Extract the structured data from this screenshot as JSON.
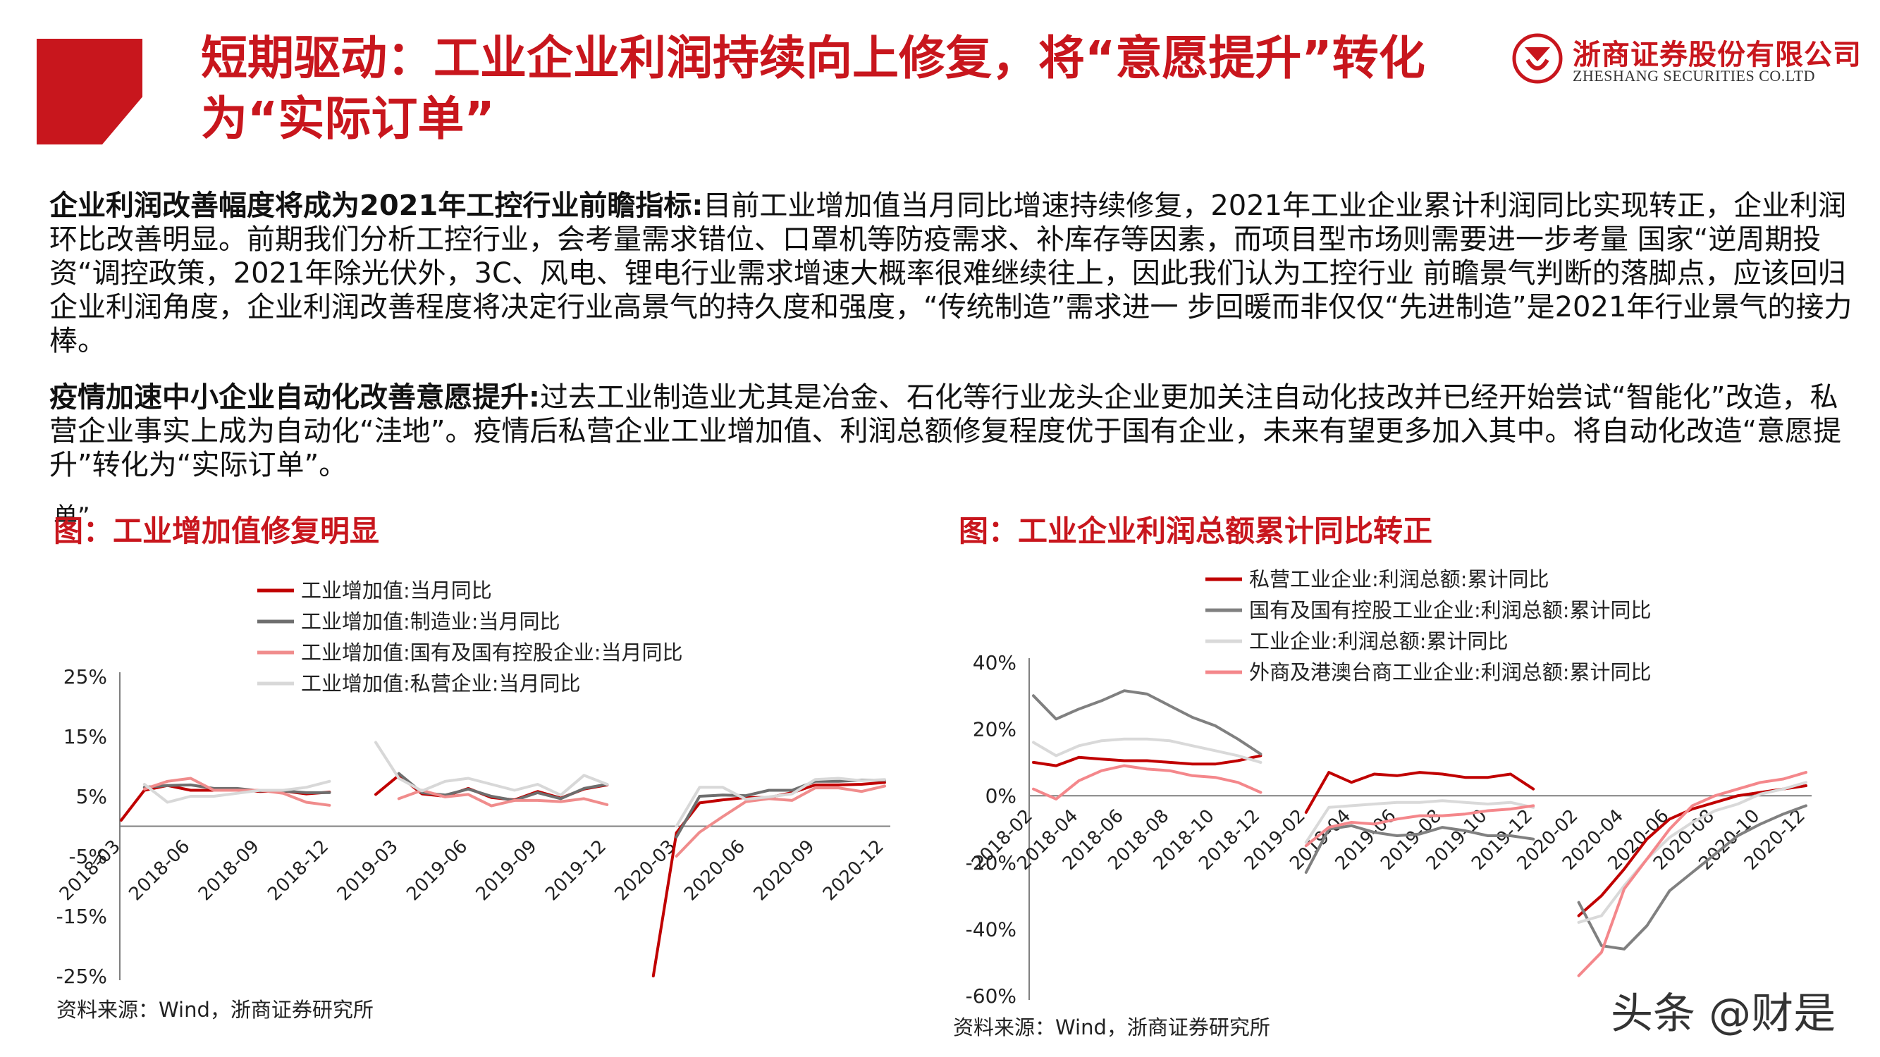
{
  "header": {
    "title": "短期驱动：工业企业利润持续向上修复，将“意愿提升”转化为“实际订单”",
    "logo_cn": "浙商证券股份有限公司",
    "logo_en": "ZHESHANG SECURITIES CO.LTD",
    "brand_color": "#c8161d"
  },
  "paragraphs": [
    {
      "lead": "企业利润改善幅度将成为2021年工控行业前瞻指标:",
      "body": "目前工业增加值当月同比增速持续修复，2021年工业企业累计利润同比实现转正，企业利润环比改善明显。前期我们分析工控行业，会考量需求错位、口罩机等防疫需求、补库存等因素，而项目型市场则需要进一步考量 国家“逆周期投资“调控政策，2021年除光伏外，3C、风电、锂电行业需求增速大概率很难继续往上，因此我们认为工控行业 前瞻景气判断的落脚点，应该回归企业利润角度，企业利润改善程度将决定行业高景气的持久度和强度，“传统制造”需求进一 步回暖而非仅仅“先进制造”是2021年行业景气的接力棒。"
    },
    {
      "lead": "疫情加速中小企业自动化改善意愿提升:",
      "body": "过去工业制造业尤其是冶金、石化等行业龙头企业更加关注自动化技改并已经开始尝试“智能化”改造，私营企业事实上成为自动化“洼地”。疫情后私营企业工业增加值、利润总额修复程度优于国有企业，未来有望更多加入其中。将自动化改造“意愿提升”转化为“实际订单”。"
    }
  ],
  "stray_text": "单”",
  "watermark": "头条 @财是",
  "chart_data": [
    {
      "type": "line",
      "title": "图：工业增加值修复明显",
      "source": "资料来源：Wind，浙商证券研究所",
      "ylim": [
        -25,
        25
      ],
      "y_ticks": [
        -25,
        -15,
        -5,
        5,
        15,
        25
      ],
      "y_tick_labels": [
        "-25%",
        "-15%",
        "-5%",
        "5%",
        "15%",
        "25%"
      ],
      "x": [
        "2018-03",
        "2018-04",
        "2018-05",
        "2018-06",
        "2018-07",
        "2018-08",
        "2018-09",
        "2018-10",
        "2018-11",
        "2018-12",
        "2019-01",
        "2019-02",
        "2019-03",
        "2019-04",
        "2019-05",
        "2019-06",
        "2019-07",
        "2019-08",
        "2019-09",
        "2019-10",
        "2019-11",
        "2019-12",
        "2020-01",
        "2020-02",
        "2020-03",
        "2020-04",
        "2020-05",
        "2020-06",
        "2020-07",
        "2020-08",
        "2020-09",
        "2020-10",
        "2020-11",
        "2020-12"
      ],
      "x_tick_labels": [
        "2018-03",
        "2018-06",
        "2018-09",
        "2018-12",
        "2019-03",
        "2019-06",
        "2019-09",
        "2019-12",
        "2020-03",
        "2020-06",
        "2020-09",
        "2020-12"
      ],
      "legend_position": "top-center",
      "grid": false,
      "series": [
        {
          "name": "工业增加值:当月同比",
          "color": "#c00000",
          "width": 4,
          "values": [
            1.0,
            6.0,
            6.8,
            6.0,
            6.0,
            6.1,
            5.8,
            5.9,
            5.4,
            5.7,
            null,
            5.3,
            8.5,
            5.4,
            5.0,
            6.3,
            4.8,
            4.4,
            5.8,
            4.7,
            6.2,
            6.9,
            null,
            -25.0,
            -1.1,
            3.9,
            4.4,
            4.8,
            4.8,
            5.6,
            6.9,
            6.9,
            7.0,
            7.3
          ]
        },
        {
          "name": "工业增加值:制造业:当月同比",
          "color": "#6e6e6e",
          "width": 4,
          "values": [
            null,
            6.5,
            6.8,
            6.9,
            6.3,
            6.3,
            5.9,
            5.9,
            5.6,
            5.6,
            null,
            null,
            8.8,
            5.6,
            5.2,
            6.2,
            5.0,
            4.3,
            5.6,
            4.6,
            6.3,
            7.0,
            null,
            null,
            -1.8,
            5.0,
            5.2,
            5.1,
            6.0,
            6.0,
            7.5,
            7.5,
            7.7,
            7.7
          ]
        },
        {
          "name": "工业增加值:国有及国有控股企业:当月同比",
          "color": "#f08c8c",
          "width": 4,
          "values": [
            null,
            6.2,
            7.5,
            8.0,
            6.0,
            6.0,
            6.0,
            5.5,
            4.0,
            3.5,
            null,
            null,
            4.6,
            6.0,
            4.9,
            5.3,
            3.4,
            4.3,
            4.3,
            4.1,
            4.6,
            3.6,
            null,
            null,
            -5.0,
            -1.0,
            1.6,
            4.1,
            4.6,
            4.3,
            6.4,
            6.4,
            5.8,
            6.7
          ]
        },
        {
          "name": "工业增加值:私营企业:当月同比",
          "color": "#d8d8d8",
          "width": 4,
          "values": [
            null,
            7.0,
            4.0,
            5.0,
            5.0,
            5.5,
            6.0,
            6.0,
            6.5,
            7.5,
            null,
            14.0,
            8.0,
            5.9,
            7.5,
            8.0,
            7.0,
            6.0,
            7.0,
            5.2,
            8.5,
            7.0,
            null,
            null,
            0.0,
            6.5,
            6.5,
            4.5,
            4.9,
            5.4,
            7.8,
            8.0,
            7.6,
            7.8
          ]
        }
      ]
    },
    {
      "type": "line",
      "title": "图：工业企业利润总额累计同比转正",
      "source": "资料来源：Wind，浙商证券研究所",
      "ylim": [
        -60,
        40
      ],
      "y_ticks": [
        -60,
        -40,
        -20,
        0,
        20,
        40
      ],
      "y_tick_labels": [
        "-60%",
        "-40%",
        "-20%",
        "0%",
        "20%",
        "40%"
      ],
      "x": [
        "2018-02",
        "2018-03",
        "2018-04",
        "2018-05",
        "2018-06",
        "2018-07",
        "2018-08",
        "2018-09",
        "2018-10",
        "2018-11",
        "2018-12",
        "2019-01",
        "2019-02",
        "2019-03",
        "2019-04",
        "2019-05",
        "2019-06",
        "2019-07",
        "2019-08",
        "2019-09",
        "2019-10",
        "2019-11",
        "2019-12",
        "2020-01",
        "2020-02",
        "2020-03",
        "2020-04",
        "2020-05",
        "2020-06",
        "2020-07",
        "2020-08",
        "2020-09",
        "2020-10",
        "2020-11",
        "2020-12"
      ],
      "x_tick_labels": [
        "2018-02",
        "2018-04",
        "2018-06",
        "2018-08",
        "2018-10",
        "2018-12",
        "2019-02",
        "2019-04",
        "2019-06",
        "2019-08",
        "2019-10",
        "2019-12",
        "2020-02",
        "2020-04",
        "2020-06",
        "2020-08",
        "2020-10",
        "2020-12"
      ],
      "legend_position": "top-center",
      "grid": false,
      "series": [
        {
          "name": "私营工业企业:利润总额:累计同比",
          "color": "#c00000",
          "width": 4,
          "values": [
            10.0,
            9.0,
            11.5,
            11.0,
            10.5,
            10.5,
            10.0,
            9.5,
            9.5,
            10.5,
            12.0,
            null,
            -5.0,
            7.0,
            4.0,
            6.5,
            6.0,
            7.0,
            6.5,
            5.5,
            5.5,
            6.5,
            2.0,
            null,
            -36.0,
            -30.0,
            -22.0,
            -13.0,
            -7.0,
            -4.0,
            -2.0,
            0.0,
            1.0,
            2.0,
            3.0
          ]
        },
        {
          "name": "国有及国有控股工业企业:利润总额:累计同比",
          "color": "#808080",
          "width": 4,
          "values": [
            30.0,
            23.0,
            26.0,
            28.5,
            31.5,
            30.5,
            27.0,
            23.5,
            21.0,
            17.0,
            12.5,
            null,
            -23.0,
            -10.0,
            -9.0,
            -11.0,
            -12.0,
            -11.5,
            -9.5,
            -10.5,
            -12.0,
            -12.0,
            -13.0,
            null,
            -32.0,
            -45.0,
            -46.0,
            -39.0,
            -28.5,
            -23.0,
            -17.5,
            -12.0,
            -8.5,
            -5.5,
            -3.0
          ]
        },
        {
          "name": "工业企业:利润总额:累计同比",
          "color": "#d9d9d9",
          "width": 4,
          "values": [
            16.0,
            12.0,
            15.0,
            16.5,
            17.0,
            17.0,
            16.5,
            15.0,
            13.5,
            12.0,
            10.0,
            null,
            -14.0,
            -3.5,
            -3.0,
            -2.5,
            -2.0,
            -2.0,
            -1.5,
            -2.0,
            -2.5,
            -2.0,
            -3.5,
            null,
            -38.0,
            -36.0,
            -27.0,
            -19.0,
            -12.5,
            -8.0,
            -4.5,
            -2.5,
            0.5,
            2.0,
            4.0
          ]
        },
        {
          "name": "外商及港澳台商工业企业:利润总额:累计同比",
          "color": "#f4878b",
          "width": 4,
          "values": [
            2.0,
            -1.0,
            4.5,
            7.5,
            9.0,
            8.0,
            7.5,
            6.0,
            5.5,
            4.0,
            1.0,
            null,
            -15.0,
            -9.5,
            -8.0,
            -8.5,
            -7.0,
            -6.0,
            -6.0,
            -5.5,
            -4.5,
            -4.0,
            -3.0,
            null,
            -54.0,
            -47.0,
            -28.0,
            -19.0,
            -10.0,
            -3.0,
            0.0,
            2.0,
            4.0,
            5.0,
            7.0
          ]
        }
      ]
    }
  ]
}
